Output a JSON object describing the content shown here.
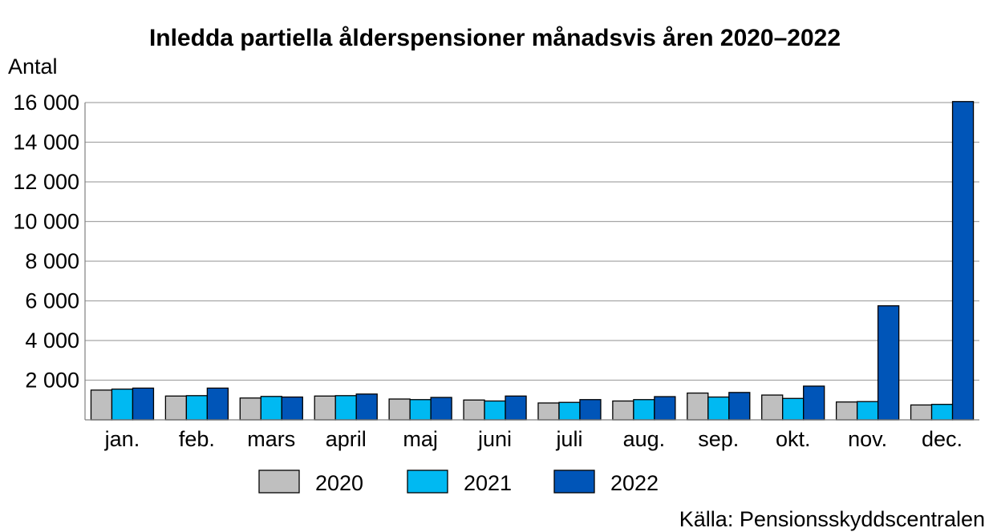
{
  "chart_data": {
    "type": "bar",
    "title": "Inledda partiella ålderspensioner månadsvis åren 2020–2022",
    "ylabel": "Antal",
    "xlabel": "",
    "ylim": [
      0,
      16000
    ],
    "yticks": [
      0,
      2000,
      4000,
      6000,
      8000,
      10000,
      12000,
      14000,
      16000
    ],
    "ytick_labels": [
      "",
      "2 000",
      "4 000",
      "6 000",
      "8 000",
      "10 000",
      "12 000",
      "14 000",
      "16 000"
    ],
    "grid": true,
    "legend_position": "bottom",
    "categories": [
      "jan.",
      "feb.",
      "mars",
      "april",
      "maj",
      "juni",
      "juli",
      "aug.",
      "sep.",
      "okt.",
      "nov.",
      "dec."
    ],
    "series": [
      {
        "name": "2020",
        "color": "#bfbfbf",
        "values": [
          1500,
          1200,
          1100,
          1200,
          1050,
          1000,
          850,
          950,
          1350,
          1250,
          900,
          750
        ]
      },
      {
        "name": "2021",
        "color": "#00b9f2",
        "values": [
          1550,
          1220,
          1180,
          1220,
          1020,
          950,
          880,
          1020,
          1150,
          1080,
          920,
          780
        ]
      },
      {
        "name": "2022",
        "color": "#0055b8",
        "values": [
          1600,
          1600,
          1150,
          1300,
          1130,
          1200,
          1020,
          1170,
          1380,
          1700,
          5750,
          16050
        ]
      }
    ],
    "source": "Källa: Pensionsskyddscentralen"
  }
}
